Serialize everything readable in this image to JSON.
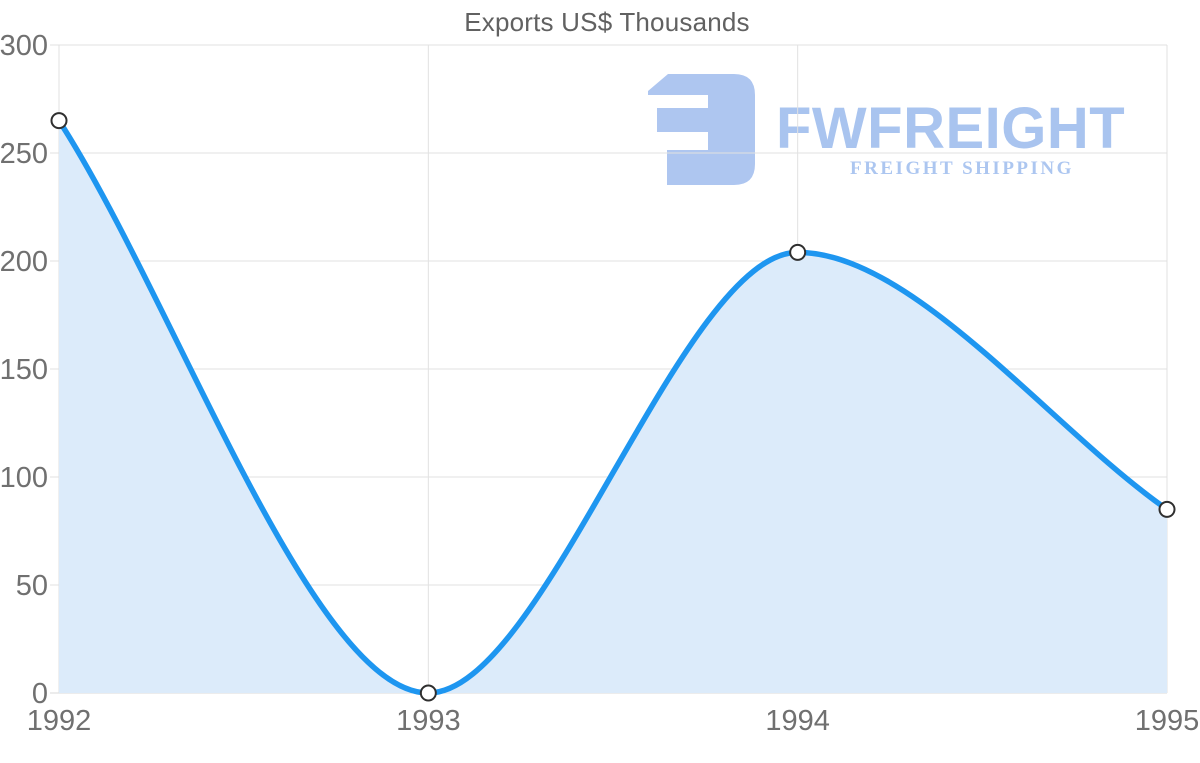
{
  "page": {
    "background": "#ffffff"
  },
  "chart_data": {
    "type": "area",
    "title": "Exports US$ Thousands",
    "categories": [
      "1992",
      "1993",
      "1994",
      "1995"
    ],
    "series": [
      {
        "name": "Exports US$ Thousands",
        "values": [
          265,
          0,
          204,
          85
        ]
      }
    ],
    "xlabel": "",
    "ylabel": "",
    "ylim": [
      0,
      300
    ],
    "yticks": [
      0,
      50,
      100,
      150,
      200,
      250,
      300
    ],
    "grid": true,
    "legend_position": "none",
    "marker_style": "white-circle-dark-outline",
    "colors": {
      "line": "#1E96F0",
      "fill": "#DCEBFA",
      "grid": "#E1E1E1",
      "axis_line": "#D9D9D9",
      "axis_text": "#707070",
      "title_text": "#616161",
      "marker_fill": "#FFFFFF",
      "marker_stroke": "#2F2F2F"
    }
  },
  "watermark": {
    "brand": "FWFREIGHT",
    "tagline": "FREIGHT SHIPPING",
    "logo_color": "#ABC4F0"
  }
}
